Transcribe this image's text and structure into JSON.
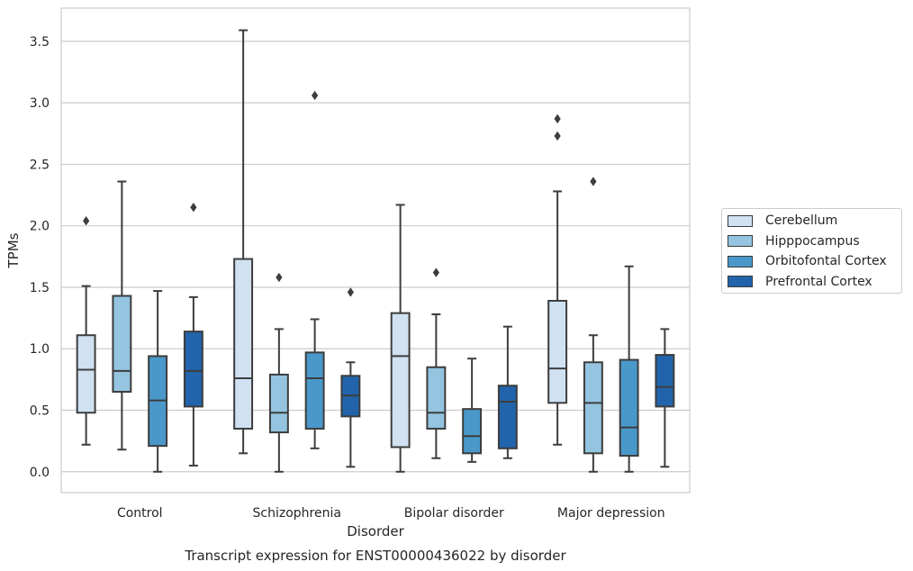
{
  "chart_data": {
    "type": "box",
    "caption": "Transcript expression for ENST00000436022 by disorder",
    "xlabel": "Disorder",
    "ylabel": "TPMs",
    "ylim": [
      -0.17,
      3.77
    ],
    "yticks": [
      0.0,
      0.5,
      1.0,
      1.5,
      2.0,
      2.5,
      3.0,
      3.5
    ],
    "ytick_labels": [
      "0.0",
      "0.5",
      "1.0",
      "1.5",
      "2.0",
      "2.5",
      "3.0",
      "3.5"
    ],
    "categories": [
      "Control",
      "Schizophrenia",
      "Bipolar disorder",
      "Major depression"
    ],
    "grid": true,
    "legend_position": "right",
    "series": [
      {
        "name": "Cerebellum",
        "color": "#d0e1f2",
        "boxes": [
          {
            "whislo": 0.22,
            "q1": 0.48,
            "med": 0.83,
            "q3": 1.11,
            "whishi": 1.51,
            "fliers": [
              2.04
            ]
          },
          {
            "whislo": 0.15,
            "q1": 0.35,
            "med": 0.76,
            "q3": 1.73,
            "whishi": 3.59,
            "fliers": []
          },
          {
            "whislo": 0.0,
            "q1": 0.2,
            "med": 0.94,
            "q3": 1.29,
            "whishi": 2.17,
            "fliers": []
          },
          {
            "whislo": 0.22,
            "q1": 0.56,
            "med": 0.84,
            "q3": 1.39,
            "whishi": 2.28,
            "fliers": [
              2.73,
              2.87
            ]
          }
        ]
      },
      {
        "name": "Hipppocampus",
        "color": "#94c4df",
        "boxes": [
          {
            "whislo": 0.18,
            "q1": 0.65,
            "med": 0.82,
            "q3": 1.43,
            "whishi": 2.36,
            "fliers": []
          },
          {
            "whislo": 0.0,
            "q1": 0.32,
            "med": 0.48,
            "q3": 0.79,
            "whishi": 1.16,
            "fliers": [
              1.58
            ]
          },
          {
            "whislo": 0.11,
            "q1": 0.35,
            "med": 0.48,
            "q3": 0.85,
            "whishi": 1.28,
            "fliers": [
              1.62
            ]
          },
          {
            "whislo": 0.0,
            "q1": 0.15,
            "med": 0.56,
            "q3": 0.89,
            "whishi": 1.11,
            "fliers": [
              2.36
            ]
          }
        ]
      },
      {
        "name": "Orbitofontal Cortex",
        "color": "#4a98c9",
        "boxes": [
          {
            "whislo": 0.0,
            "q1": 0.21,
            "med": 0.58,
            "q3": 0.94,
            "whishi": 1.47,
            "fliers": []
          },
          {
            "whislo": 0.19,
            "q1": 0.35,
            "med": 0.76,
            "q3": 0.97,
            "whishi": 1.24,
            "fliers": [
              3.06
            ]
          },
          {
            "whislo": 0.08,
            "q1": 0.15,
            "med": 0.29,
            "q3": 0.51,
            "whishi": 0.92,
            "fliers": []
          },
          {
            "whislo": 0.0,
            "q1": 0.13,
            "med": 0.36,
            "q3": 0.91,
            "whishi": 1.67,
            "fliers": []
          }
        ]
      },
      {
        "name": "Prefrontal Cortex",
        "color": "#2164ab",
        "boxes": [
          {
            "whislo": 0.05,
            "q1": 0.53,
            "med": 0.82,
            "q3": 1.14,
            "whishi": 1.42,
            "fliers": [
              2.15
            ]
          },
          {
            "whislo": 0.04,
            "q1": 0.45,
            "med": 0.62,
            "q3": 0.78,
            "whishi": 0.89,
            "fliers": [
              1.46
            ]
          },
          {
            "whislo": 0.11,
            "q1": 0.19,
            "med": 0.57,
            "q3": 0.7,
            "whishi": 1.18,
            "fliers": []
          },
          {
            "whislo": 0.04,
            "q1": 0.53,
            "med": 0.69,
            "q3": 0.95,
            "whishi": 1.16,
            "fliers": []
          }
        ]
      }
    ]
  }
}
